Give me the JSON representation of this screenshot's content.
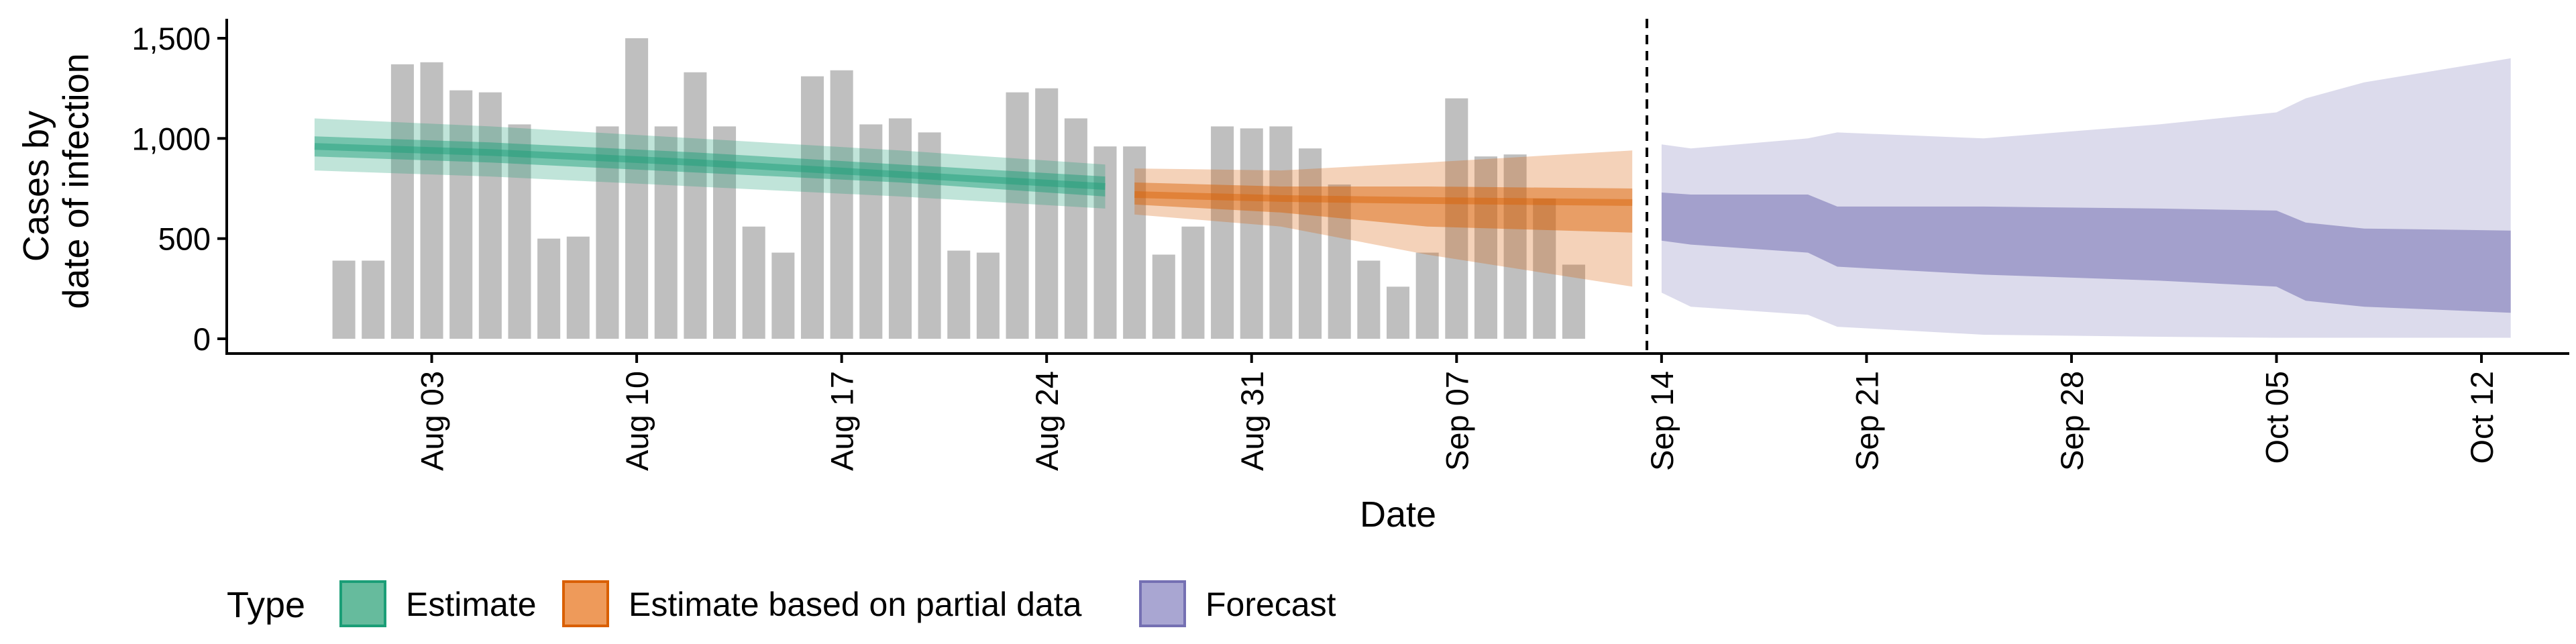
{
  "chart_data": {
    "type": "bar",
    "xlabel": "Date",
    "ylabel_lines": [
      "Cases by",
      "date of infection"
    ],
    "yticks": [
      0,
      500,
      1000,
      1500
    ],
    "ytick_labels": [
      "0",
      "500",
      "1,000",
      "1,500"
    ],
    "ylim": [
      0,
      1600
    ],
    "xlim": [
      "2020-07-27",
      "2020-10-15"
    ],
    "xticks": [
      "2020-08-03",
      "2020-08-10",
      "2020-08-17",
      "2020-08-24",
      "2020-08-31",
      "2020-09-07",
      "2020-09-14",
      "2020-09-21",
      "2020-09-28",
      "2020-10-05",
      "2020-10-12"
    ],
    "xtick_labels": [
      "Aug 03",
      "Aug 10",
      "Aug 17",
      "Aug 24",
      "Aug 31",
      "Sep 07",
      "Sep 14",
      "Sep 21",
      "Sep 28",
      "Oct 05",
      "Oct 12"
    ],
    "forecast_cutoff_date": "2020-09-13",
    "grid": false,
    "legend_position": "bottom-left",
    "legend": {
      "title": "Type",
      "items": [
        {
          "label": "Estimate",
          "fill": "#66bb9d",
          "stroke": "#1b9e77"
        },
        {
          "label": "Estimate based on partial data",
          "fill": "#ee9a5a",
          "stroke": "#d95f02"
        },
        {
          "label": "Forecast",
          "fill": "#a9a6d2",
          "stroke": "#7570b3"
        }
      ]
    },
    "colors": {
      "bars": "#bfbfbf",
      "estimate": "#1b9e77",
      "partial": "#d95f02",
      "forecast": "#7570b3"
    },
    "bars": {
      "x": [
        "2020-07-31",
        "2020-08-01",
        "2020-08-02",
        "2020-08-03",
        "2020-08-04",
        "2020-08-05",
        "2020-08-06",
        "2020-08-07",
        "2020-08-08",
        "2020-08-09",
        "2020-08-10",
        "2020-08-11",
        "2020-08-12",
        "2020-08-13",
        "2020-08-14",
        "2020-08-15",
        "2020-08-16",
        "2020-08-17",
        "2020-08-18",
        "2020-08-19",
        "2020-08-20",
        "2020-08-21",
        "2020-08-22",
        "2020-08-23",
        "2020-08-24",
        "2020-08-25",
        "2020-08-26",
        "2020-08-27",
        "2020-08-28",
        "2020-08-29",
        "2020-08-30",
        "2020-08-31",
        "2020-09-01",
        "2020-09-02",
        "2020-09-03",
        "2020-09-04",
        "2020-09-05",
        "2020-09-06",
        "2020-09-07",
        "2020-09-08",
        "2020-09-09",
        "2020-09-10",
        "2020-09-11",
        "2020-09-12",
        "2020-09-13"
      ],
      "values": [
        390,
        390,
        1370,
        1380,
        1240,
        1230,
        1070,
        500,
        510,
        1060,
        1500,
        1060,
        1330,
        1060,
        560,
        430,
        1310,
        1340,
        1070,
        1100,
        1030,
        440,
        430,
        1230,
        1250,
        1100,
        960,
        960,
        420,
        560,
        1060,
        1050,
        1060,
        950,
        770,
        390,
        260,
        430,
        1200,
        910,
        920,
        700,
        370,
        0,
        0
      ]
    },
    "series": [
      {
        "name": "Estimate",
        "x": [
          "2020-07-30",
          "2020-08-05",
          "2020-08-12",
          "2020-08-19",
          "2020-08-26"
        ],
        "median": [
          960,
          930,
          880,
          820,
          760
        ],
        "lower_50": [
          910,
          880,
          830,
          780,
          710
        ],
        "upper_50": [
          1010,
          980,
          930,
          870,
          810
        ],
        "lower_90": [
          840,
          810,
          760,
          710,
          650
        ],
        "upper_90": [
          1100,
          1060,
          1000,
          940,
          870
        ]
      },
      {
        "name": "Estimate based on partial data",
        "x": [
          "2020-08-27",
          "2020-09-01",
          "2020-09-06",
          "2020-09-13"
        ],
        "median": [
          720,
          700,
          690,
          680
        ],
        "lower_50": [
          670,
          630,
          560,
          530
        ],
        "upper_50": [
          780,
          760,
          760,
          750
        ],
        "lower_90": [
          620,
          560,
          420,
          260
        ],
        "upper_90": [
          850,
          840,
          880,
          940
        ]
      },
      {
        "name": "Forecast",
        "x": [
          "2020-09-14",
          "2020-09-15",
          "2020-09-19",
          "2020-09-20",
          "2020-09-25",
          "2020-10-01",
          "2020-10-05",
          "2020-10-06",
          "2020-10-08",
          "2020-10-13"
        ],
        "lower_50": [
          490,
          470,
          430,
          360,
          320,
          290,
          260,
          190,
          160,
          130
        ],
        "upper_50": [
          730,
          720,
          720,
          660,
          660,
          650,
          640,
          580,
          550,
          540
        ],
        "lower_90": [
          230,
          160,
          120,
          60,
          20,
          10,
          5,
          5,
          5,
          5
        ],
        "upper_90": [
          970,
          950,
          1000,
          1030,
          1000,
          1070,
          1130,
          1200,
          1280,
          1400
        ]
      }
    ]
  }
}
